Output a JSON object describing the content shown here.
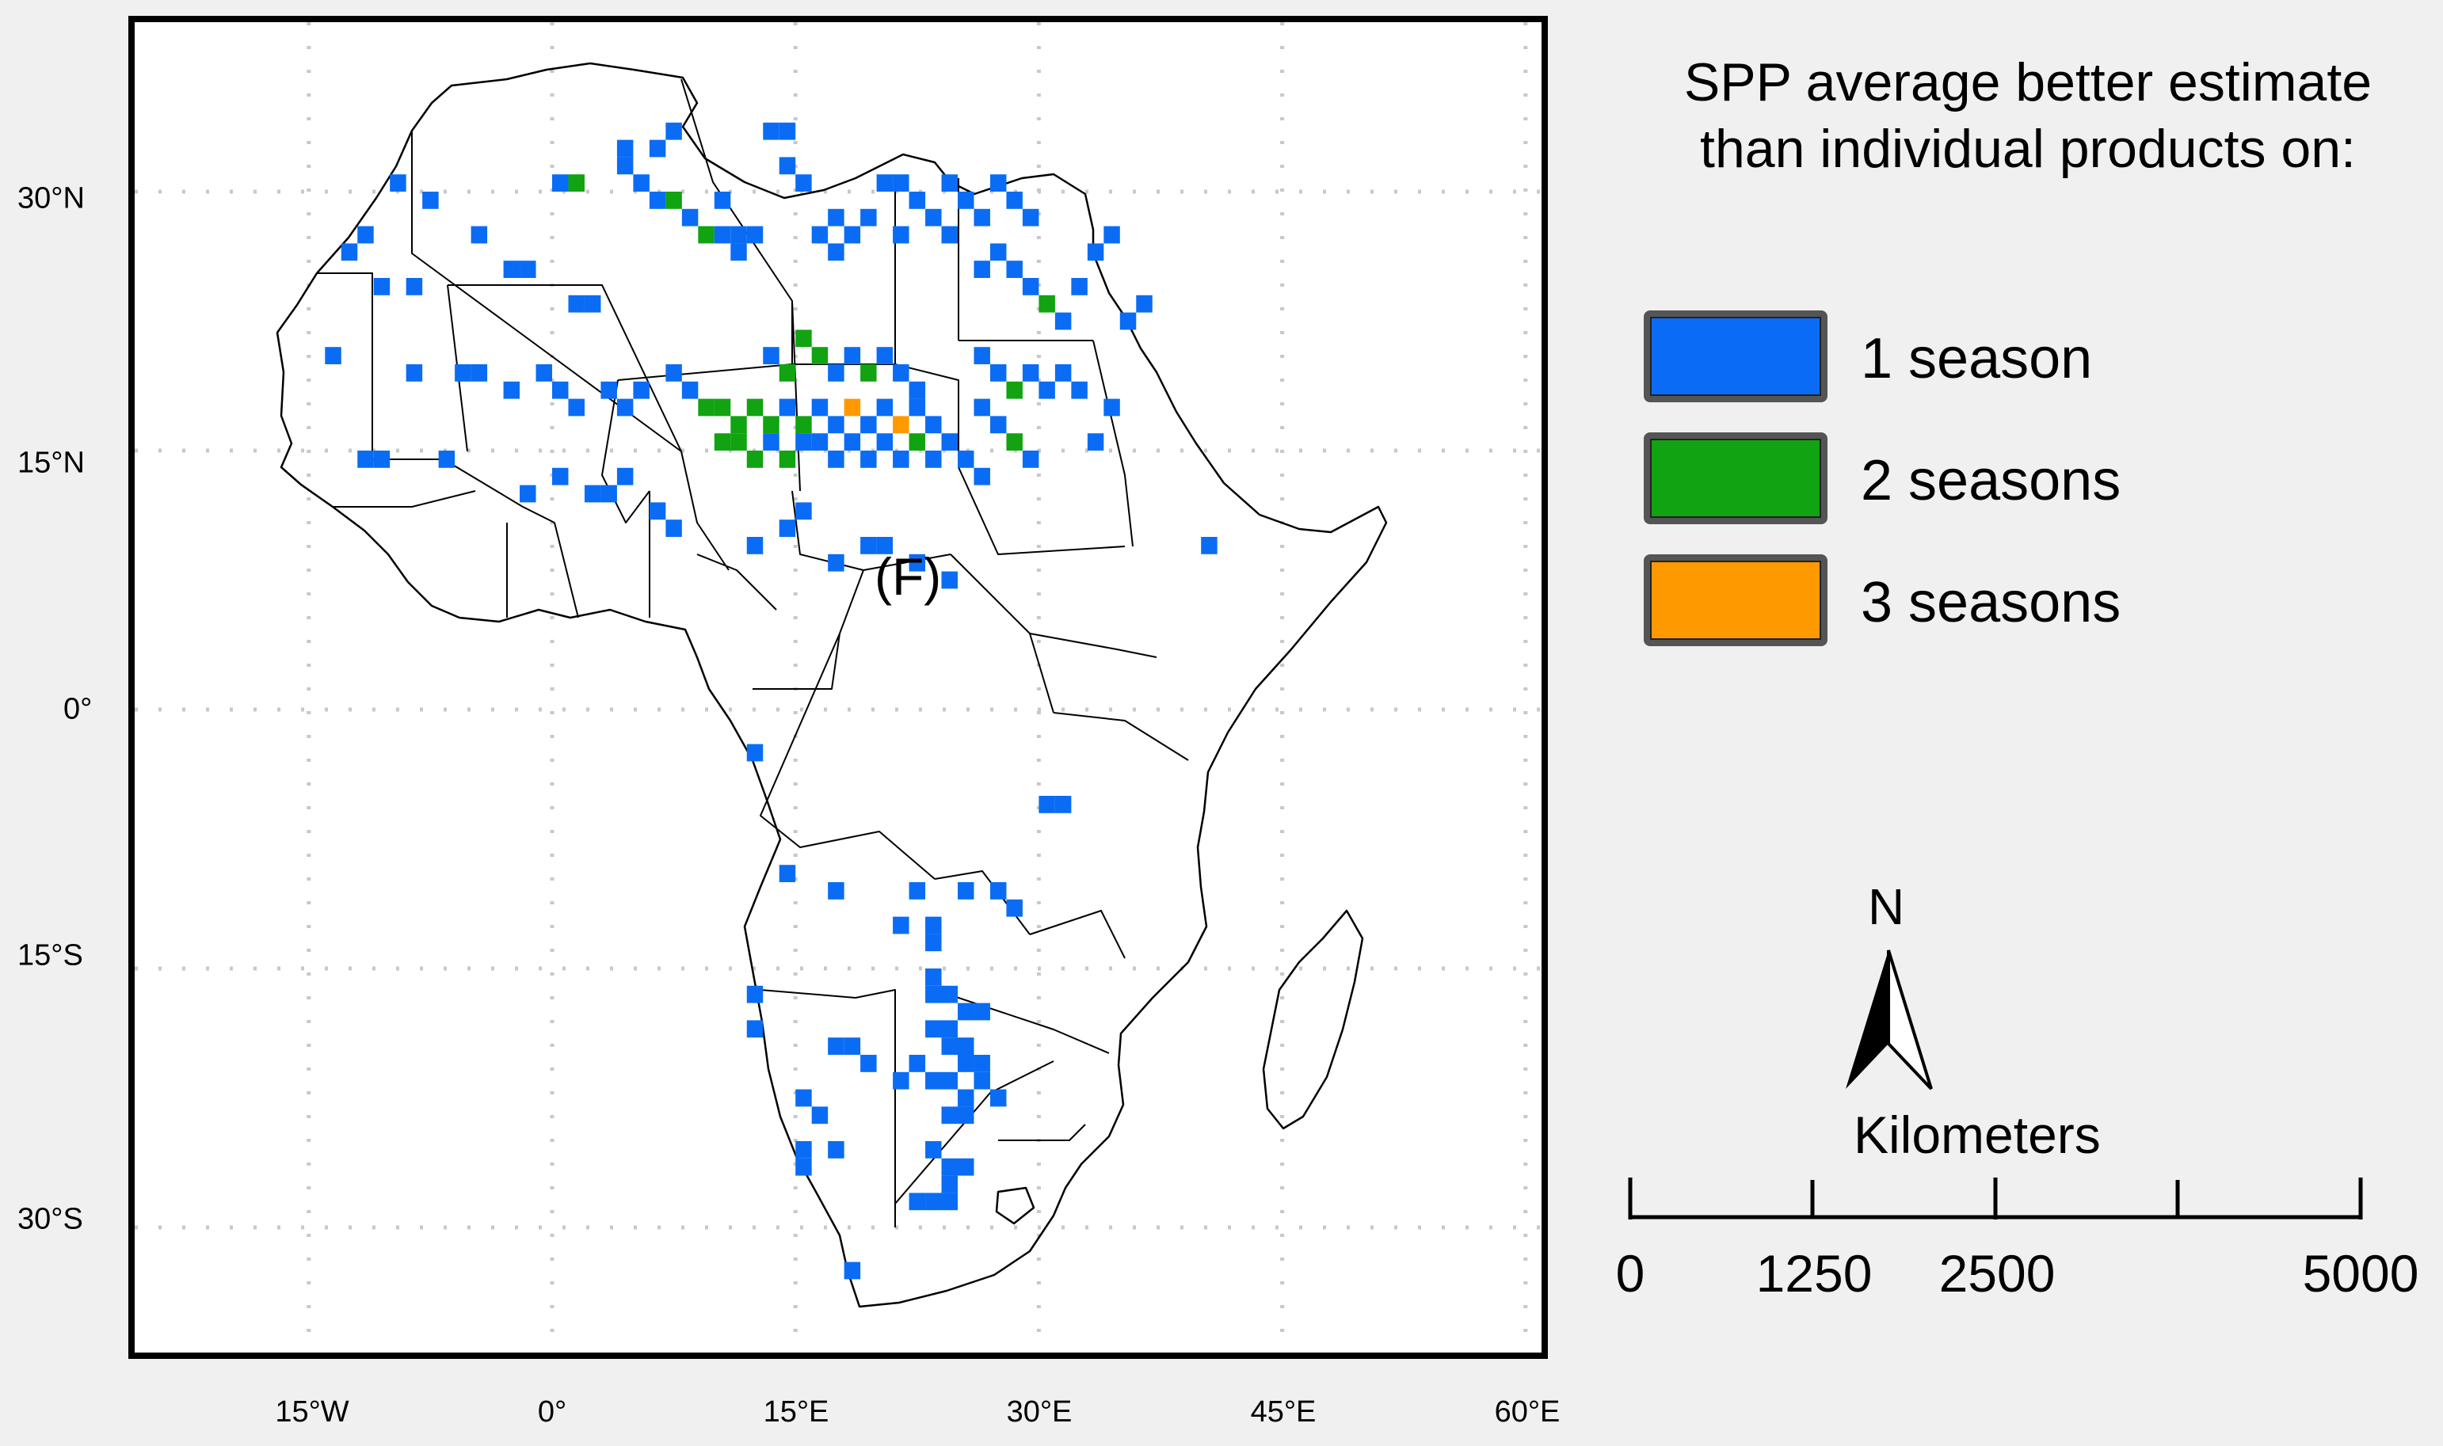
{
  "map": {
    "panel_label": "(F)",
    "lat_labels": [
      "30°N",
      "15°N",
      "0°",
      "15°S",
      "30°S"
    ],
    "lon_labels": [
      "15°W",
      "0°",
      "15°E",
      "30°E",
      "45°E",
      "60°E"
    ],
    "graticule_lat": [
      30,
      15,
      0,
      -15,
      -30
    ],
    "graticule_lon": [
      -15,
      0,
      15,
      30,
      45,
      60
    ],
    "cells": [
      {
        "lon": 13,
        "lat": 33,
        "n": 1
      },
      {
        "lon": 14,
        "lat": 33,
        "n": 1
      },
      {
        "lon": 14,
        "lat": 31,
        "n": 1
      },
      {
        "lon": 15,
        "lat": 30,
        "n": 1
      },
      {
        "lon": 0,
        "lat": 30,
        "n": 1
      },
      {
        "lon": 1,
        "lat": 30,
        "n": 2
      },
      {
        "lon": 4,
        "lat": 31,
        "n": 1
      },
      {
        "lon": 5,
        "lat": 30,
        "n": 1
      },
      {
        "lon": 6,
        "lat": 29,
        "n": 1
      },
      {
        "lon": 7,
        "lat": 29,
        "n": 2
      },
      {
        "lon": 8,
        "lat": 28,
        "n": 1
      },
      {
        "lon": 6,
        "lat": 32,
        "n": 1
      },
      {
        "lon": 7,
        "lat": 33,
        "n": 1
      },
      {
        "lon": 4,
        "lat": 32,
        "n": 1
      },
      {
        "lon": 10,
        "lat": 29,
        "n": 1
      },
      {
        "lon": 9,
        "lat": 27,
        "n": 2
      },
      {
        "lon": 10,
        "lat": 27,
        "n": 1
      },
      {
        "lon": 11,
        "lat": 27,
        "n": 1
      },
      {
        "lon": 12,
        "lat": 27,
        "n": 1
      },
      {
        "lon": 11,
        "lat": 26,
        "n": 1
      },
      {
        "lon": 17,
        "lat": 28,
        "n": 1
      },
      {
        "lon": 18,
        "lat": 27,
        "n": 1
      },
      {
        "lon": 19,
        "lat": 28,
        "n": 1
      },
      {
        "lon": 17,
        "lat": 26,
        "n": 1
      },
      {
        "lon": 16,
        "lat": 27,
        "n": 1
      },
      {
        "lon": 20,
        "lat": 30,
        "n": 1
      },
      {
        "lon": 21,
        "lat": 30,
        "n": 1
      },
      {
        "lon": 22,
        "lat": 29,
        "n": 1
      },
      {
        "lon": 21,
        "lat": 27,
        "n": 1
      },
      {
        "lon": 23,
        "lat": 28,
        "n": 1
      },
      {
        "lon": 24,
        "lat": 30,
        "n": 1
      },
      {
        "lon": 25,
        "lat": 29,
        "n": 1
      },
      {
        "lon": 24,
        "lat": 27,
        "n": 1
      },
      {
        "lon": 26,
        "lat": 28,
        "n": 1
      },
      {
        "lon": 27,
        "lat": 30,
        "n": 1
      },
      {
        "lon": 28,
        "lat": 29,
        "n": 1
      },
      {
        "lon": 29,
        "lat": 28,
        "n": 1
      },
      {
        "lon": 27,
        "lat": 26,
        "n": 1
      },
      {
        "lon": 26,
        "lat": 25,
        "n": 1
      },
      {
        "lon": 28,
        "lat": 25,
        "n": 1
      },
      {
        "lon": 29,
        "lat": 24,
        "n": 1
      },
      {
        "lon": 30,
        "lat": 23,
        "n": 2
      },
      {
        "lon": 31,
        "lat": 22,
        "n": 1
      },
      {
        "lon": 32,
        "lat": 24,
        "n": 1
      },
      {
        "lon": 33,
        "lat": 26,
        "n": 1
      },
      {
        "lon": 34,
        "lat": 27,
        "n": 1
      },
      {
        "lon": 35,
        "lat": 22,
        "n": 1
      },
      {
        "lon": 36,
        "lat": 23,
        "n": 1
      },
      {
        "lon": -10,
        "lat": 30,
        "n": 1
      },
      {
        "lon": -8,
        "lat": 29,
        "n": 1
      },
      {
        "lon": -12,
        "lat": 27,
        "n": 1
      },
      {
        "lon": -13,
        "lat": 26,
        "n": 1
      },
      {
        "lon": -11,
        "lat": 24,
        "n": 1
      },
      {
        "lon": -9,
        "lat": 24,
        "n": 1
      },
      {
        "lon": -5,
        "lat": 27,
        "n": 1
      },
      {
        "lon": -3,
        "lat": 25,
        "n": 1
      },
      {
        "lon": -2,
        "lat": 25,
        "n": 1
      },
      {
        "lon": 1,
        "lat": 23,
        "n": 1
      },
      {
        "lon": 2,
        "lat": 23,
        "n": 1
      },
      {
        "lon": -14,
        "lat": 20,
        "n": 1
      },
      {
        "lon": -9,
        "lat": 19,
        "n": 1
      },
      {
        "lon": -6,
        "lat": 19,
        "n": 1
      },
      {
        "lon": -5,
        "lat": 19,
        "n": 1
      },
      {
        "lon": -3,
        "lat": 18,
        "n": 1
      },
      {
        "lon": -1,
        "lat": 19,
        "n": 1
      },
      {
        "lon": 0,
        "lat": 18,
        "n": 1
      },
      {
        "lon": 1,
        "lat": 17,
        "n": 1
      },
      {
        "lon": 3,
        "lat": 18,
        "n": 1
      },
      {
        "lon": 4,
        "lat": 17,
        "n": 1
      },
      {
        "lon": 5,
        "lat": 18,
        "n": 1
      },
      {
        "lon": 7,
        "lat": 19,
        "n": 1
      },
      {
        "lon": 8,
        "lat": 18,
        "n": 1
      },
      {
        "lon": 9,
        "lat": 17,
        "n": 2
      },
      {
        "lon": 10,
        "lat": 17,
        "n": 2
      },
      {
        "lon": 11,
        "lat": 16,
        "n": 2
      },
      {
        "lon": 12,
        "lat": 17,
        "n": 2
      },
      {
        "lon": 13,
        "lat": 16,
        "n": 2
      },
      {
        "lon": 14,
        "lat": 17,
        "n": 1
      },
      {
        "lon": 15,
        "lat": 16,
        "n": 2
      },
      {
        "lon": 16,
        "lat": 17,
        "n": 1
      },
      {
        "lon": 17,
        "lat": 16,
        "n": 1
      },
      {
        "lon": 18,
        "lat": 17,
        "n": 3
      },
      {
        "lon": 19,
        "lat": 16,
        "n": 1
      },
      {
        "lon": 20,
        "lat": 17,
        "n": 1
      },
      {
        "lon": 21,
        "lat": 16,
        "n": 3
      },
      {
        "lon": 22,
        "lat": 17,
        "n": 1
      },
      {
        "lon": 23,
        "lat": 16,
        "n": 1
      },
      {
        "lon": 24,
        "lat": 15,
        "n": 1
      },
      {
        "lon": 10,
        "lat": 15,
        "n": 2
      },
      {
        "lon": 11,
        "lat": 15,
        "n": 2
      },
      {
        "lon": 12,
        "lat": 14,
        "n": 2
      },
      {
        "lon": 13,
        "lat": 15,
        "n": 1
      },
      {
        "lon": 14,
        "lat": 14,
        "n": 2
      },
      {
        "lon": 15,
        "lat": 15,
        "n": 1
      },
      {
        "lon": 16,
        "lat": 15,
        "n": 1
      },
      {
        "lon": 17,
        "lat": 14,
        "n": 1
      },
      {
        "lon": 18,
        "lat": 15,
        "n": 1
      },
      {
        "lon": 19,
        "lat": 14,
        "n": 1
      },
      {
        "lon": 20,
        "lat": 15,
        "n": 1
      },
      {
        "lon": 21,
        "lat": 14,
        "n": 1
      },
      {
        "lon": 22,
        "lat": 15,
        "n": 2
      },
      {
        "lon": 23,
        "lat": 14,
        "n": 1
      },
      {
        "lon": 17,
        "lat": 19,
        "n": 1
      },
      {
        "lon": 18,
        "lat": 20,
        "n": 1
      },
      {
        "lon": 19,
        "lat": 19,
        "n": 2
      },
      {
        "lon": 20,
        "lat": 20,
        "n": 1
      },
      {
        "lon": 21,
        "lat": 19,
        "n": 1
      },
      {
        "lon": 22,
        "lat": 18,
        "n": 1
      },
      {
        "lon": 16,
        "lat": 20,
        "n": 2
      },
      {
        "lon": 15,
        "lat": 21,
        "n": 2
      },
      {
        "lon": 14,
        "lat": 19,
        "n": 2
      },
      {
        "lon": 13,
        "lat": 20,
        "n": 1
      },
      {
        "lon": 26,
        "lat": 20,
        "n": 1
      },
      {
        "lon": 27,
        "lat": 19,
        "n": 1
      },
      {
        "lon": 28,
        "lat": 18,
        "n": 2
      },
      {
        "lon": 29,
        "lat": 19,
        "n": 1
      },
      {
        "lon": 30,
        "lat": 18,
        "n": 1
      },
      {
        "lon": 26,
        "lat": 17,
        "n": 1
      },
      {
        "lon": 27,
        "lat": 16,
        "n": 1
      },
      {
        "lon": 28,
        "lat": 15,
        "n": 2
      },
      {
        "lon": 25,
        "lat": 14,
        "n": 1
      },
      {
        "lon": 26,
        "lat": 13,
        "n": 1
      },
      {
        "lon": 29,
        "lat": 14,
        "n": 1
      },
      {
        "lon": 31,
        "lat": 19,
        "n": 1
      },
      {
        "lon": 32,
        "lat": 18,
        "n": 1
      },
      {
        "lon": 34,
        "lat": 17,
        "n": 1
      },
      {
        "lon": 33,
        "lat": 15,
        "n": 1
      },
      {
        "lon": -12,
        "lat": 14,
        "n": 1
      },
      {
        "lon": -11,
        "lat": 14,
        "n": 1
      },
      {
        "lon": -7,
        "lat": 14,
        "n": 1
      },
      {
        "lon": -2,
        "lat": 12,
        "n": 1
      },
      {
        "lon": 0,
        "lat": 13,
        "n": 1
      },
      {
        "lon": 2,
        "lat": 12,
        "n": 1
      },
      {
        "lon": 3,
        "lat": 12,
        "n": 1
      },
      {
        "lon": 4,
        "lat": 13,
        "n": 1
      },
      {
        "lon": 6,
        "lat": 11,
        "n": 1
      },
      {
        "lon": 7,
        "lat": 10,
        "n": 1
      },
      {
        "lon": 12,
        "lat": 9,
        "n": 1
      },
      {
        "lon": 14,
        "lat": 10,
        "n": 1
      },
      {
        "lon": 15,
        "lat": 11,
        "n": 1
      },
      {
        "lon": 17,
        "lat": 8,
        "n": 1
      },
      {
        "lon": 19,
        "lat": 9,
        "n": 1
      },
      {
        "lon": 20,
        "lat": 9,
        "n": 1
      },
      {
        "lon": 22,
        "lat": 8,
        "n": 1
      },
      {
        "lon": 24,
        "lat": 7,
        "n": 1
      },
      {
        "lon": 40,
        "lat": 9,
        "n": 1
      },
      {
        "lon": 12,
        "lat": -3,
        "n": 1
      },
      {
        "lon": 30,
        "lat": -6,
        "n": 1
      },
      {
        "lon": 31,
        "lat": -6,
        "n": 1
      },
      {
        "lon": 14,
        "lat": -10,
        "n": 1
      },
      {
        "lon": 17,
        "lat": -11,
        "n": 1
      },
      {
        "lon": 22,
        "lat": -11,
        "n": 1
      },
      {
        "lon": 25,
        "lat": -11,
        "n": 1
      },
      {
        "lon": 27,
        "lat": -11,
        "n": 1
      },
      {
        "lon": 28,
        "lat": -12,
        "n": 1
      },
      {
        "lon": 21,
        "lat": -13,
        "n": 1
      },
      {
        "lon": 23,
        "lat": -13,
        "n": 1
      },
      {
        "lon": 23,
        "lat": -14,
        "n": 1
      },
      {
        "lon": 23,
        "lat": -16,
        "n": 1
      },
      {
        "lon": 23,
        "lat": -17,
        "n": 1
      },
      {
        "lon": 24,
        "lat": -17,
        "n": 1
      },
      {
        "lon": 25,
        "lat": -18,
        "n": 1
      },
      {
        "lon": 26,
        "lat": -18,
        "n": 1
      },
      {
        "lon": 12,
        "lat": -17,
        "n": 1
      },
      {
        "lon": 12,
        "lat": -19,
        "n": 1
      },
      {
        "lon": 17,
        "lat": -20,
        "n": 1
      },
      {
        "lon": 18,
        "lat": -20,
        "n": 1
      },
      {
        "lon": 19,
        "lat": -21,
        "n": 1
      },
      {
        "lon": 23,
        "lat": -19,
        "n": 1
      },
      {
        "lon": 24,
        "lat": -19,
        "n": 1
      },
      {
        "lon": 24,
        "lat": -20,
        "n": 1
      },
      {
        "lon": 25,
        "lat": -20,
        "n": 1
      },
      {
        "lon": 25,
        "lat": -21,
        "n": 1
      },
      {
        "lon": 26,
        "lat": -21,
        "n": 1
      },
      {
        "lon": 23,
        "lat": -22,
        "n": 1
      },
      {
        "lon": 24,
        "lat": -22,
        "n": 1
      },
      {
        "lon": 25,
        "lat": -23,
        "n": 1
      },
      {
        "lon": 26,
        "lat": -22,
        "n": 1
      },
      {
        "lon": 27,
        "lat": -23,
        "n": 1
      },
      {
        "lon": 22,
        "lat": -21,
        "n": 1
      },
      {
        "lon": 21,
        "lat": -22,
        "n": 1
      },
      {
        "lon": 24,
        "lat": -24,
        "n": 1
      },
      {
        "lon": 25,
        "lat": -24,
        "n": 1
      },
      {
        "lon": 15,
        "lat": -23,
        "n": 1
      },
      {
        "lon": 16,
        "lat": -24,
        "n": 1
      },
      {
        "lon": 15,
        "lat": -26,
        "n": 1
      },
      {
        "lon": 15,
        "lat": -27,
        "n": 1
      },
      {
        "lon": 17,
        "lat": -26,
        "n": 1
      },
      {
        "lon": 23,
        "lat": -26,
        "n": 1
      },
      {
        "lon": 24,
        "lat": -27,
        "n": 1
      },
      {
        "lon": 25,
        "lat": -27,
        "n": 1
      },
      {
        "lon": 24,
        "lat": -28,
        "n": 1
      },
      {
        "lon": 22,
        "lat": -29,
        "n": 1
      },
      {
        "lon": 23,
        "lat": -29,
        "n": 1
      },
      {
        "lon": 24,
        "lat": -29,
        "n": 1
      },
      {
        "lon": 18,
        "lat": -33,
        "n": 1
      }
    ]
  },
  "legend": {
    "title_line1": "SPP average better estimate",
    "title_line2": "than individual products on:",
    "items": [
      {
        "label": "1 season",
        "color": "#0a6cf5"
      },
      {
        "label": "2 seasons",
        "color": "#11a311"
      },
      {
        "label": "3 seasons",
        "color": "#ff9900"
      }
    ]
  },
  "north_arrow": {
    "letter": "N"
  },
  "scale_bar": {
    "title": "Kilometers",
    "labels": [
      "0",
      "1250",
      "2500",
      "5000"
    ]
  }
}
